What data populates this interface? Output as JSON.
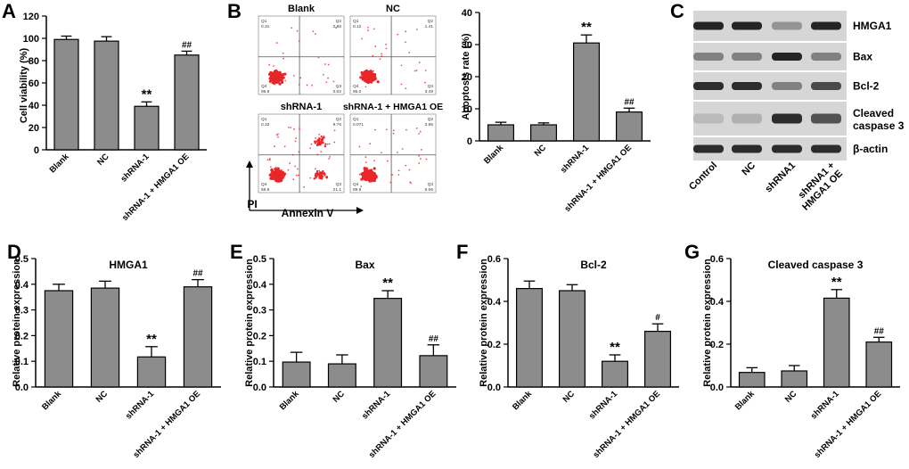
{
  "colors": {
    "bar": "#8c8c8c",
    "axis": "#000000",
    "dots": "#e8262a",
    "blot_bg": "#d6d6d6",
    "band": "#1a1a1a"
  },
  "panel_letters": [
    "A",
    "B",
    "C",
    "D",
    "E",
    "F",
    "G"
  ],
  "ytitles": {
    "viability": "Cell viability (%)",
    "apoptosis": "Apoptosis rate (%)",
    "rel": "Relative protein expression"
  },
  "flow": {
    "plots": [
      {
        "title": "Blank",
        "q1": "0.31",
        "q2": "2.86",
        "q3": "0.02",
        "q4": "96.8"
      },
      {
        "title": "NC",
        "q1": "0.12",
        "q2": "1.41",
        "q3": "3.49",
        "q4": "95.0"
      },
      {
        "title": "shRNA-1",
        "q1": "0.33",
        "q2": "9.76",
        "q3": "21.1",
        "q4": "68.8"
      },
      {
        "title": "shRNA-1 + HMGA1 OE",
        "q1": "0.071",
        "q2": "3.95",
        "q3": "6.06",
        "q4": "89.9"
      }
    ],
    "q_labels": [
      "Q1",
      "Q2",
      "Q3",
      "Q4"
    ],
    "xlabel": "Annexin V",
    "ylabel": "PI"
  },
  "blot": {
    "proteins": [
      "HMGA1",
      "Bax",
      "Bcl-2",
      "Cleaved caspase 3",
      "β-actin"
    ],
    "lanes": [
      "Control",
      "NC",
      "shRNA1",
      "shRNA1 + HMGA1 OE"
    ]
  },
  "chart_data": [
    {
      "id": "A",
      "type": "bar",
      "title": "",
      "ylabel": "Cell viability (%)",
      "xlabel": "",
      "categories": [
        "Blank",
        "NC",
        "shRNA-1",
        "shRNA-1 + HMGA1 OE"
      ],
      "values": [
        99,
        97.5,
        39,
        85
      ],
      "errors": [
        3,
        4,
        4,
        3.5
      ],
      "annotations": [
        "",
        "",
        "**",
        "##"
      ],
      "ylim": [
        0,
        120
      ],
      "yticks": [
        0,
        20,
        40,
        60,
        80,
        100,
        120
      ],
      "ytick_labels": [
        "0",
        "20",
        "40",
        "60",
        "80",
        "100",
        "120"
      ]
    },
    {
      "id": "B",
      "type": "bar",
      "title": "",
      "ylabel": "Apoptosis rate (%)",
      "xlabel": "",
      "categories": [
        "Blank",
        "NC",
        "shRNA-1",
        "shRNA-1 + HMGA1 OE"
      ],
      "values": [
        5,
        5,
        30.5,
        9
      ],
      "errors": [
        0.8,
        0.6,
        2.5,
        1.2
      ],
      "annotations": [
        "",
        "",
        "**",
        "##"
      ],
      "ylim": [
        0,
        40
      ],
      "yticks": [
        0,
        10,
        20,
        30,
        40
      ],
      "ytick_labels": [
        "0",
        "10",
        "20",
        "30",
        "40"
      ]
    },
    {
      "id": "D",
      "type": "bar",
      "title": "HMGA1",
      "ylabel": "Relative protein expression",
      "xlabel": "",
      "categories": [
        "Blank",
        "NC",
        "shRNA-1",
        "shRNA-1 + HMGA1 OE"
      ],
      "values": [
        0.375,
        0.385,
        0.117,
        0.39
      ],
      "errors": [
        0.025,
        0.027,
        0.04,
        0.028
      ],
      "annotations": [
        "",
        "",
        "**",
        "##"
      ],
      "ylim": [
        0,
        0.5
      ],
      "yticks": [
        0,
        0.1,
        0.2,
        0.3,
        0.4,
        0.5
      ],
      "ytick_labels": [
        "0.0",
        "0.1",
        "0.2",
        "0.3",
        "0.4",
        "0.5"
      ]
    },
    {
      "id": "E",
      "type": "bar",
      "title": "Bax",
      "ylabel": "Relative protein expression",
      "xlabel": "",
      "categories": [
        "Blank",
        "NC",
        "shRNA-1",
        "shRNA-1 + HMGA1 OE"
      ],
      "values": [
        0.097,
        0.09,
        0.345,
        0.122
      ],
      "errors": [
        0.038,
        0.035,
        0.03,
        0.042
      ],
      "annotations": [
        "",
        "",
        "**",
        "##"
      ],
      "ylim": [
        0,
        0.5
      ],
      "yticks": [
        0,
        0.1,
        0.2,
        0.3,
        0.4,
        0.5
      ],
      "ytick_labels": [
        "0.0",
        "0.1",
        "0.2",
        "0.3",
        "0.4",
        "0.5"
      ]
    },
    {
      "id": "F",
      "type": "bar",
      "title": "Bcl-2",
      "ylabel": "Relative protein expression",
      "xlabel": "",
      "categories": [
        "Blank",
        "NC",
        "shRNA-1",
        "shRNA-1 + HMGA1 OE"
      ],
      "values": [
        0.46,
        0.45,
        0.12,
        0.26
      ],
      "errors": [
        0.035,
        0.028,
        0.03,
        0.035
      ],
      "annotations": [
        "",
        "",
        "**",
        "#"
      ],
      "ylim": [
        0,
        0.6
      ],
      "yticks": [
        0,
        0.2,
        0.4,
        0.6
      ],
      "ytick_labels": [
        "0.0",
        "0.2",
        "0.4",
        "0.6"
      ]
    },
    {
      "id": "G",
      "type": "bar",
      "title": "Cleaved caspase 3",
      "ylabel": "Relative protein expression",
      "xlabel": "",
      "categories": [
        "Blank",
        "NC",
        "shRNA-1",
        "shRNA-1 + HMGA1 OE"
      ],
      "values": [
        0.068,
        0.075,
        0.415,
        0.21
      ],
      "errors": [
        0.022,
        0.025,
        0.04,
        0.022
      ],
      "annotations": [
        "",
        "",
        "**",
        "##"
      ],
      "ylim": [
        0,
        0.6
      ],
      "yticks": [
        0,
        0.2,
        0.4,
        0.6
      ],
      "ytick_labels": [
        "0.0",
        "0.2",
        "0.4",
        "0.6"
      ]
    }
  ]
}
